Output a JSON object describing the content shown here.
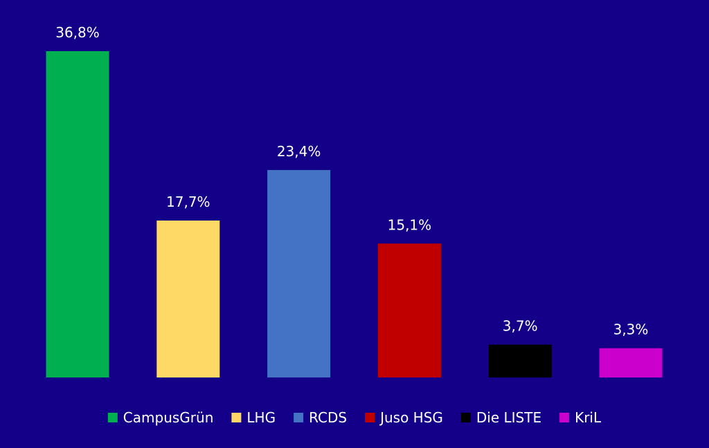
{
  "background": "#140088",
  "chart_data": {
    "type": "bar",
    "title": "",
    "xlabel": "",
    "ylabel": "",
    "ylim": [
      0,
      36.8
    ],
    "grid": false,
    "legend_position": "bottom",
    "value_suffix": "%",
    "categories": [
      "CampusGrün",
      "LHG",
      "RCDS",
      "Juso HSG",
      "Die LISTE",
      "KriL"
    ],
    "values": [
      36.8,
      17.7,
      23.4,
      15.1,
      3.7,
      3.3
    ],
    "data_labels": [
      "36,8%",
      "17,7%",
      "23,4%",
      "15,1%",
      "3,7%",
      "3,3%"
    ],
    "colors": [
      "#00B050",
      "#FFD966",
      "#4472C4",
      "#C00000",
      "#000000",
      "#CC00CC"
    ]
  }
}
